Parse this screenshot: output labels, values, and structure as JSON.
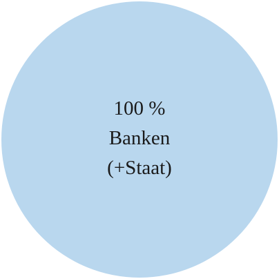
{
  "chart_data": {
    "type": "pie",
    "categories": [
      "Banken (+Staat)"
    ],
    "values": [
      100
    ],
    "value_labels": [
      "100 %"
    ],
    "colors": [
      "#b9d7ee"
    ]
  }
}
